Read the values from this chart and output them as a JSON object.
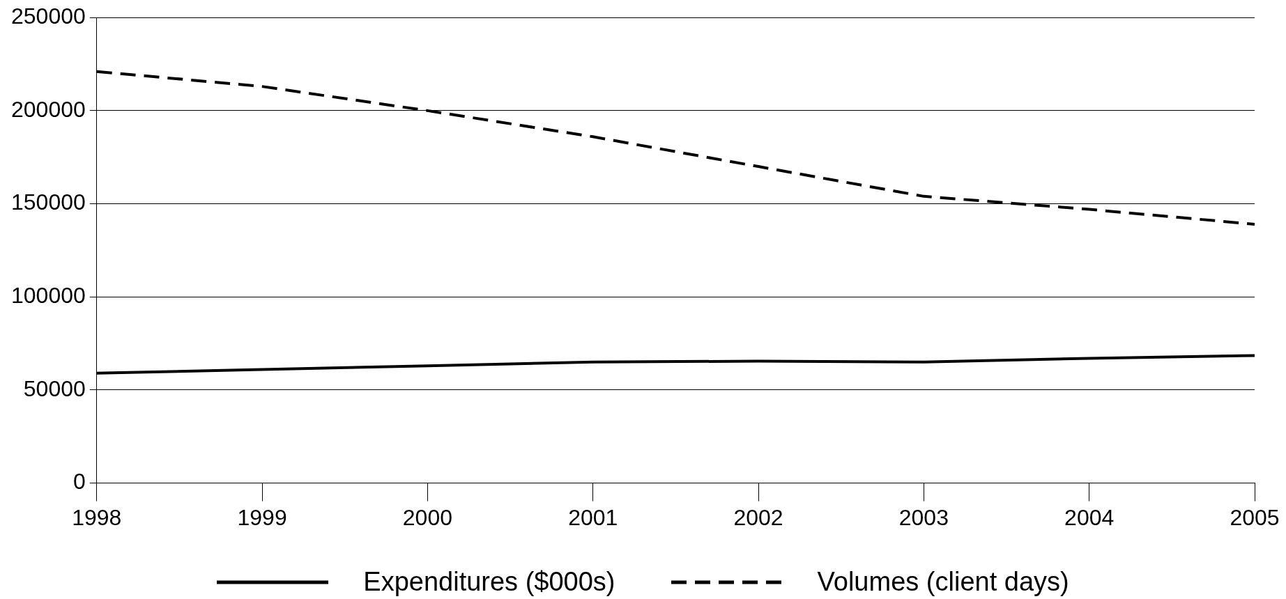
{
  "chart_data": {
    "type": "line",
    "categories": [
      "1998",
      "1999",
      "2000",
      "2001",
      "2002",
      "2003",
      "2004",
      "2005"
    ],
    "series": [
      {
        "name": "Expenditures ($000s)",
        "color": "#000000",
        "line_style": "solid",
        "values": [
          59000,
          61000,
          63000,
          65000,
          65500,
          65000,
          67000,
          68500
        ]
      },
      {
        "name": "Volumes (client days)",
        "color": "#000000",
        "line_style": "dashed",
        "values": [
          221000,
          213000,
          200000,
          186000,
          170000,
          154000,
          147000,
          139000
        ]
      }
    ],
    "ylim": [
      0,
      250000
    ],
    "yticks": [
      0,
      50000,
      100000,
      150000,
      200000,
      250000
    ],
    "grid": "y",
    "legend": "bottom",
    "marker": "none"
  }
}
